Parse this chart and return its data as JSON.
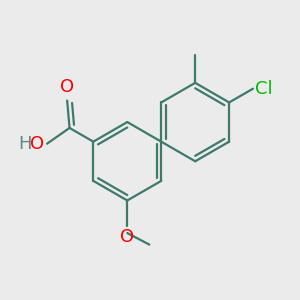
{
  "bg": "#ebebeb",
  "bond_color": "#3d7a6a",
  "bond_lw": 1.6,
  "atom_colors": {
    "O": "#ff0000",
    "Cl": "#00bb00",
    "H": "#5a8a80"
  },
  "font_size": 13
}
